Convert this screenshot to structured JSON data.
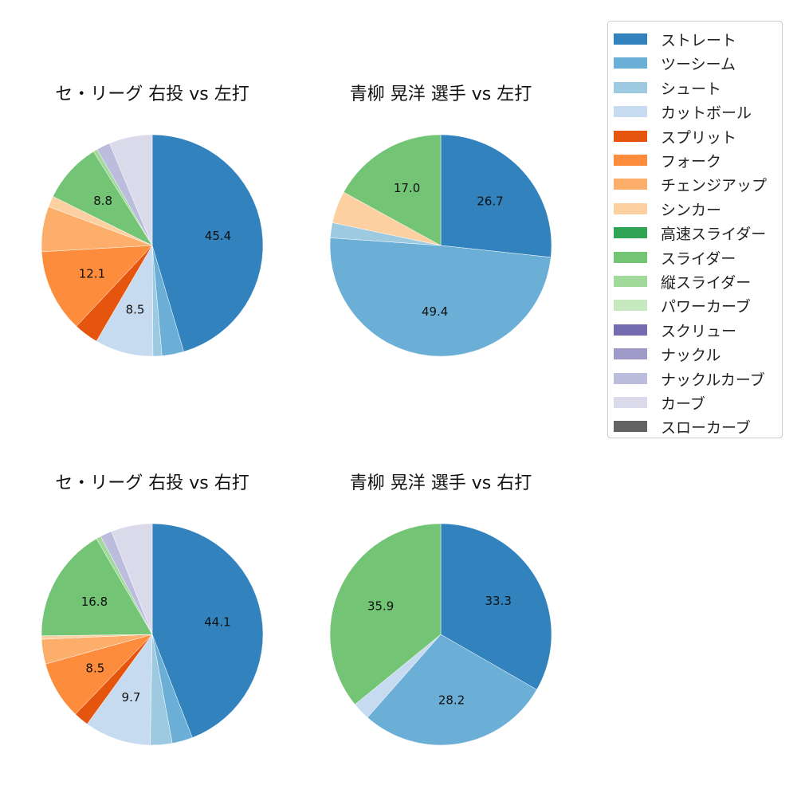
{
  "chart_data": [
    {
      "type": "pie",
      "title": "セ・リーグ 右投 vs 左打",
      "slices": [
        {
          "name": "ストレート",
          "value": 45.4,
          "label": "45.4"
        },
        {
          "name": "ツーシーム",
          "value": 3.2
        },
        {
          "name": "シュート",
          "value": 1.3
        },
        {
          "name": "カットボール",
          "value": 8.5,
          "label": "8.5"
        },
        {
          "name": "スプリット",
          "value": 3.6
        },
        {
          "name": "フォーク",
          "value": 12.1,
          "label": "12.1"
        },
        {
          "name": "チェンジアップ",
          "value": 6.6
        },
        {
          "name": "シンカー",
          "value": 1.6
        },
        {
          "name": "スライダー",
          "value": 8.8,
          "label": "8.8"
        },
        {
          "name": "縦スライダー",
          "value": 0.6
        },
        {
          "name": "ナックルカーブ",
          "value": 2.0
        },
        {
          "name": "カーブ",
          "value": 6.3
        }
      ]
    },
    {
      "type": "pie",
      "title": "青柳 晃洋 選手 vs 左打",
      "slices": [
        {
          "name": "ストレート",
          "value": 26.7,
          "label": "26.7"
        },
        {
          "name": "ツーシーム",
          "value": 49.4,
          "label": "49.4"
        },
        {
          "name": "シュート",
          "value": 2.2
        },
        {
          "name": "シンカー",
          "value": 4.7
        },
        {
          "name": "スライダー",
          "value": 17.0,
          "label": "17.0"
        }
      ]
    },
    {
      "type": "pie",
      "title": "セ・リーグ 右投 vs 右打",
      "slices": [
        {
          "name": "ストレート",
          "value": 44.1,
          "label": "44.1"
        },
        {
          "name": "ツーシーム",
          "value": 3.0
        },
        {
          "name": "シュート",
          "value": 3.2
        },
        {
          "name": "カットボール",
          "value": 9.7,
          "label": "9.7"
        },
        {
          "name": "スプリット",
          "value": 2.2
        },
        {
          "name": "フォーク",
          "value": 8.5,
          "label": "8.5"
        },
        {
          "name": "チェンジアップ",
          "value": 3.6
        },
        {
          "name": "シンカー",
          "value": 0.5
        },
        {
          "name": "スライダー",
          "value": 16.8,
          "label": "16.8"
        },
        {
          "name": "縦スライダー",
          "value": 0.7
        },
        {
          "name": "ナックルカーブ",
          "value": 1.7
        },
        {
          "name": "カーブ",
          "value": 6.0
        }
      ]
    },
    {
      "type": "pie",
      "title": "青柳 晃洋 選手 vs 右打",
      "slices": [
        {
          "name": "ストレート",
          "value": 33.3,
          "label": "33.3"
        },
        {
          "name": "ツーシーム",
          "value": 28.2,
          "label": "28.2"
        },
        {
          "name": "カットボール",
          "value": 2.6
        },
        {
          "name": "スライダー",
          "value": 35.9,
          "label": "35.9"
        }
      ]
    }
  ],
  "legend": [
    {
      "name": "ストレート",
      "color": "#3182bd"
    },
    {
      "name": "ツーシーム",
      "color": "#6baed6"
    },
    {
      "name": "シュート",
      "color": "#9ecae1"
    },
    {
      "name": "カットボール",
      "color": "#c6dbef"
    },
    {
      "name": "スプリット",
      "color": "#e6550d"
    },
    {
      "name": "フォーク",
      "color": "#fd8d3c"
    },
    {
      "name": "チェンジアップ",
      "color": "#fdae6b"
    },
    {
      "name": "シンカー",
      "color": "#fdd0a2"
    },
    {
      "name": "高速スライダー",
      "color": "#31a354"
    },
    {
      "name": "スライダー",
      "color": "#74c476"
    },
    {
      "name": "縦スライダー",
      "color": "#a1d99b"
    },
    {
      "name": "パワーカーブ",
      "color": "#c7e9c0"
    },
    {
      "name": "スクリュー",
      "color": "#756bb1"
    },
    {
      "name": "ナックル",
      "color": "#9e9ac8"
    },
    {
      "name": "ナックルカーブ",
      "color": "#bcbddc"
    },
    {
      "name": "カーブ",
      "color": "#dadaeb"
    },
    {
      "name": "スローカーブ",
      "color": "#636363"
    }
  ]
}
